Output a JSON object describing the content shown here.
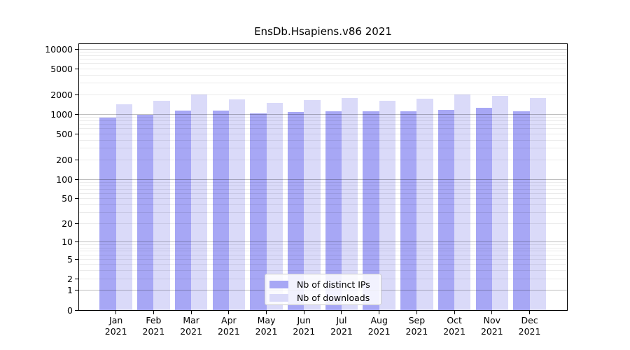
{
  "chart_data": {
    "type": "bar",
    "title": "EnsDb.Hsapiens.v86 2021",
    "categories": [
      {
        "month": "Jan",
        "year": "2021"
      },
      {
        "month": "Feb",
        "year": "2021"
      },
      {
        "month": "Mar",
        "year": "2021"
      },
      {
        "month": "Apr",
        "year": "2021"
      },
      {
        "month": "May",
        "year": "2021"
      },
      {
        "month": "Jun",
        "year": "2021"
      },
      {
        "month": "Jul",
        "year": "2021"
      },
      {
        "month": "Aug",
        "year": "2021"
      },
      {
        "month": "Sep",
        "year": "2021"
      },
      {
        "month": "Oct",
        "year": "2021"
      },
      {
        "month": "Nov",
        "year": "2021"
      },
      {
        "month": "Dec",
        "year": "2021"
      }
    ],
    "series": [
      {
        "name": "Nb of distinct IPs",
        "color": "#a7a7f5",
        "values": [
          890,
          970,
          1150,
          1150,
          1040,
          1070,
          1100,
          1110,
          1120,
          1160,
          1250,
          1110
        ]
      },
      {
        "name": "Nb of downloads",
        "color": "#dadaf9",
        "values": [
          1420,
          1600,
          2020,
          1700,
          1500,
          1640,
          1780,
          1610,
          1750,
          2000,
          1900,
          1760
        ]
      }
    ],
    "yscale": "log1p",
    "yticks": [
      0,
      1,
      2,
      5,
      10,
      20,
      50,
      100,
      200,
      500,
      1000,
      2000,
      5000,
      10000
    ],
    "ylim": [
      0,
      11900
    ],
    "grid": true,
    "legend_position": "lower center",
    "colors": {
      "grid_major": "rgba(0,0,0,0.25)",
      "grid_minor": "rgba(0,0,0,0.08)",
      "spine": "#000000",
      "background": "#ffffff"
    }
  }
}
